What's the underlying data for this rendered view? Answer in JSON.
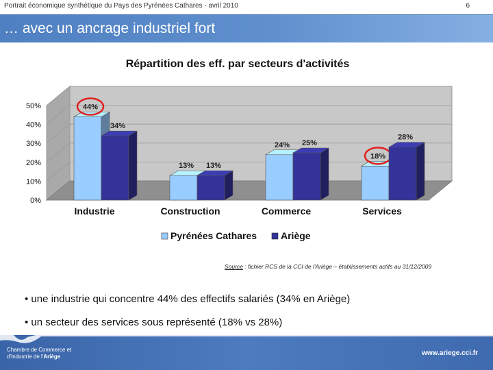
{
  "header": {
    "doc_title": "Portrait économique synthétique du Pays des Pyrénées Cathares - avril 2010",
    "page_number": "6"
  },
  "banner": {
    "title": "… avec un ancrage industriel fort"
  },
  "chart_data": {
    "type": "bar",
    "title": "Répartition des eff. par secteurs d'activités",
    "categories": [
      "Industrie",
      "Construction",
      "Commerce",
      "Services"
    ],
    "series": [
      {
        "name": "Pyrénées Cathares",
        "values": [
          44,
          13,
          24,
          18
        ],
        "color": "#99ccff"
      },
      {
        "name": "Ariège",
        "values": [
          34,
          13,
          25,
          28
        ],
        "color": "#333399"
      }
    ],
    "value_labels": [
      [
        "44%",
        "13%",
        "24%",
        "18%"
      ],
      [
        "34%",
        "13%",
        "25%",
        "28%"
      ]
    ],
    "ylim": [
      0,
      50
    ],
    "yticks": [
      "0%",
      "10%",
      "20%",
      "30%",
      "40%",
      "50%"
    ],
    "highlighted": [
      "44%",
      "18%"
    ],
    "legend_position": "bottom",
    "grid": true
  },
  "source": {
    "label": "Source",
    "text": " : fichier RCS de la CCI de l'Ariège – établissements actifs au 31/12/2009"
  },
  "bullets": [
    "• une industrie qui concentre 44% des effectifs salariés (34% en Ariège)",
    "• un secteur des services sous représenté (18% vs 28%)"
  ],
  "footer": {
    "org_line1": "Chambre de Commerce et",
    "org_line2_prefix": "d'Industrie de l'",
    "org_line2_bold": "Ariège",
    "url": "www.ariege.cci.fr"
  },
  "colors": {
    "highlight_ring": "#e32020",
    "banner": "#5a8bcb",
    "footer": "#4470b5"
  }
}
